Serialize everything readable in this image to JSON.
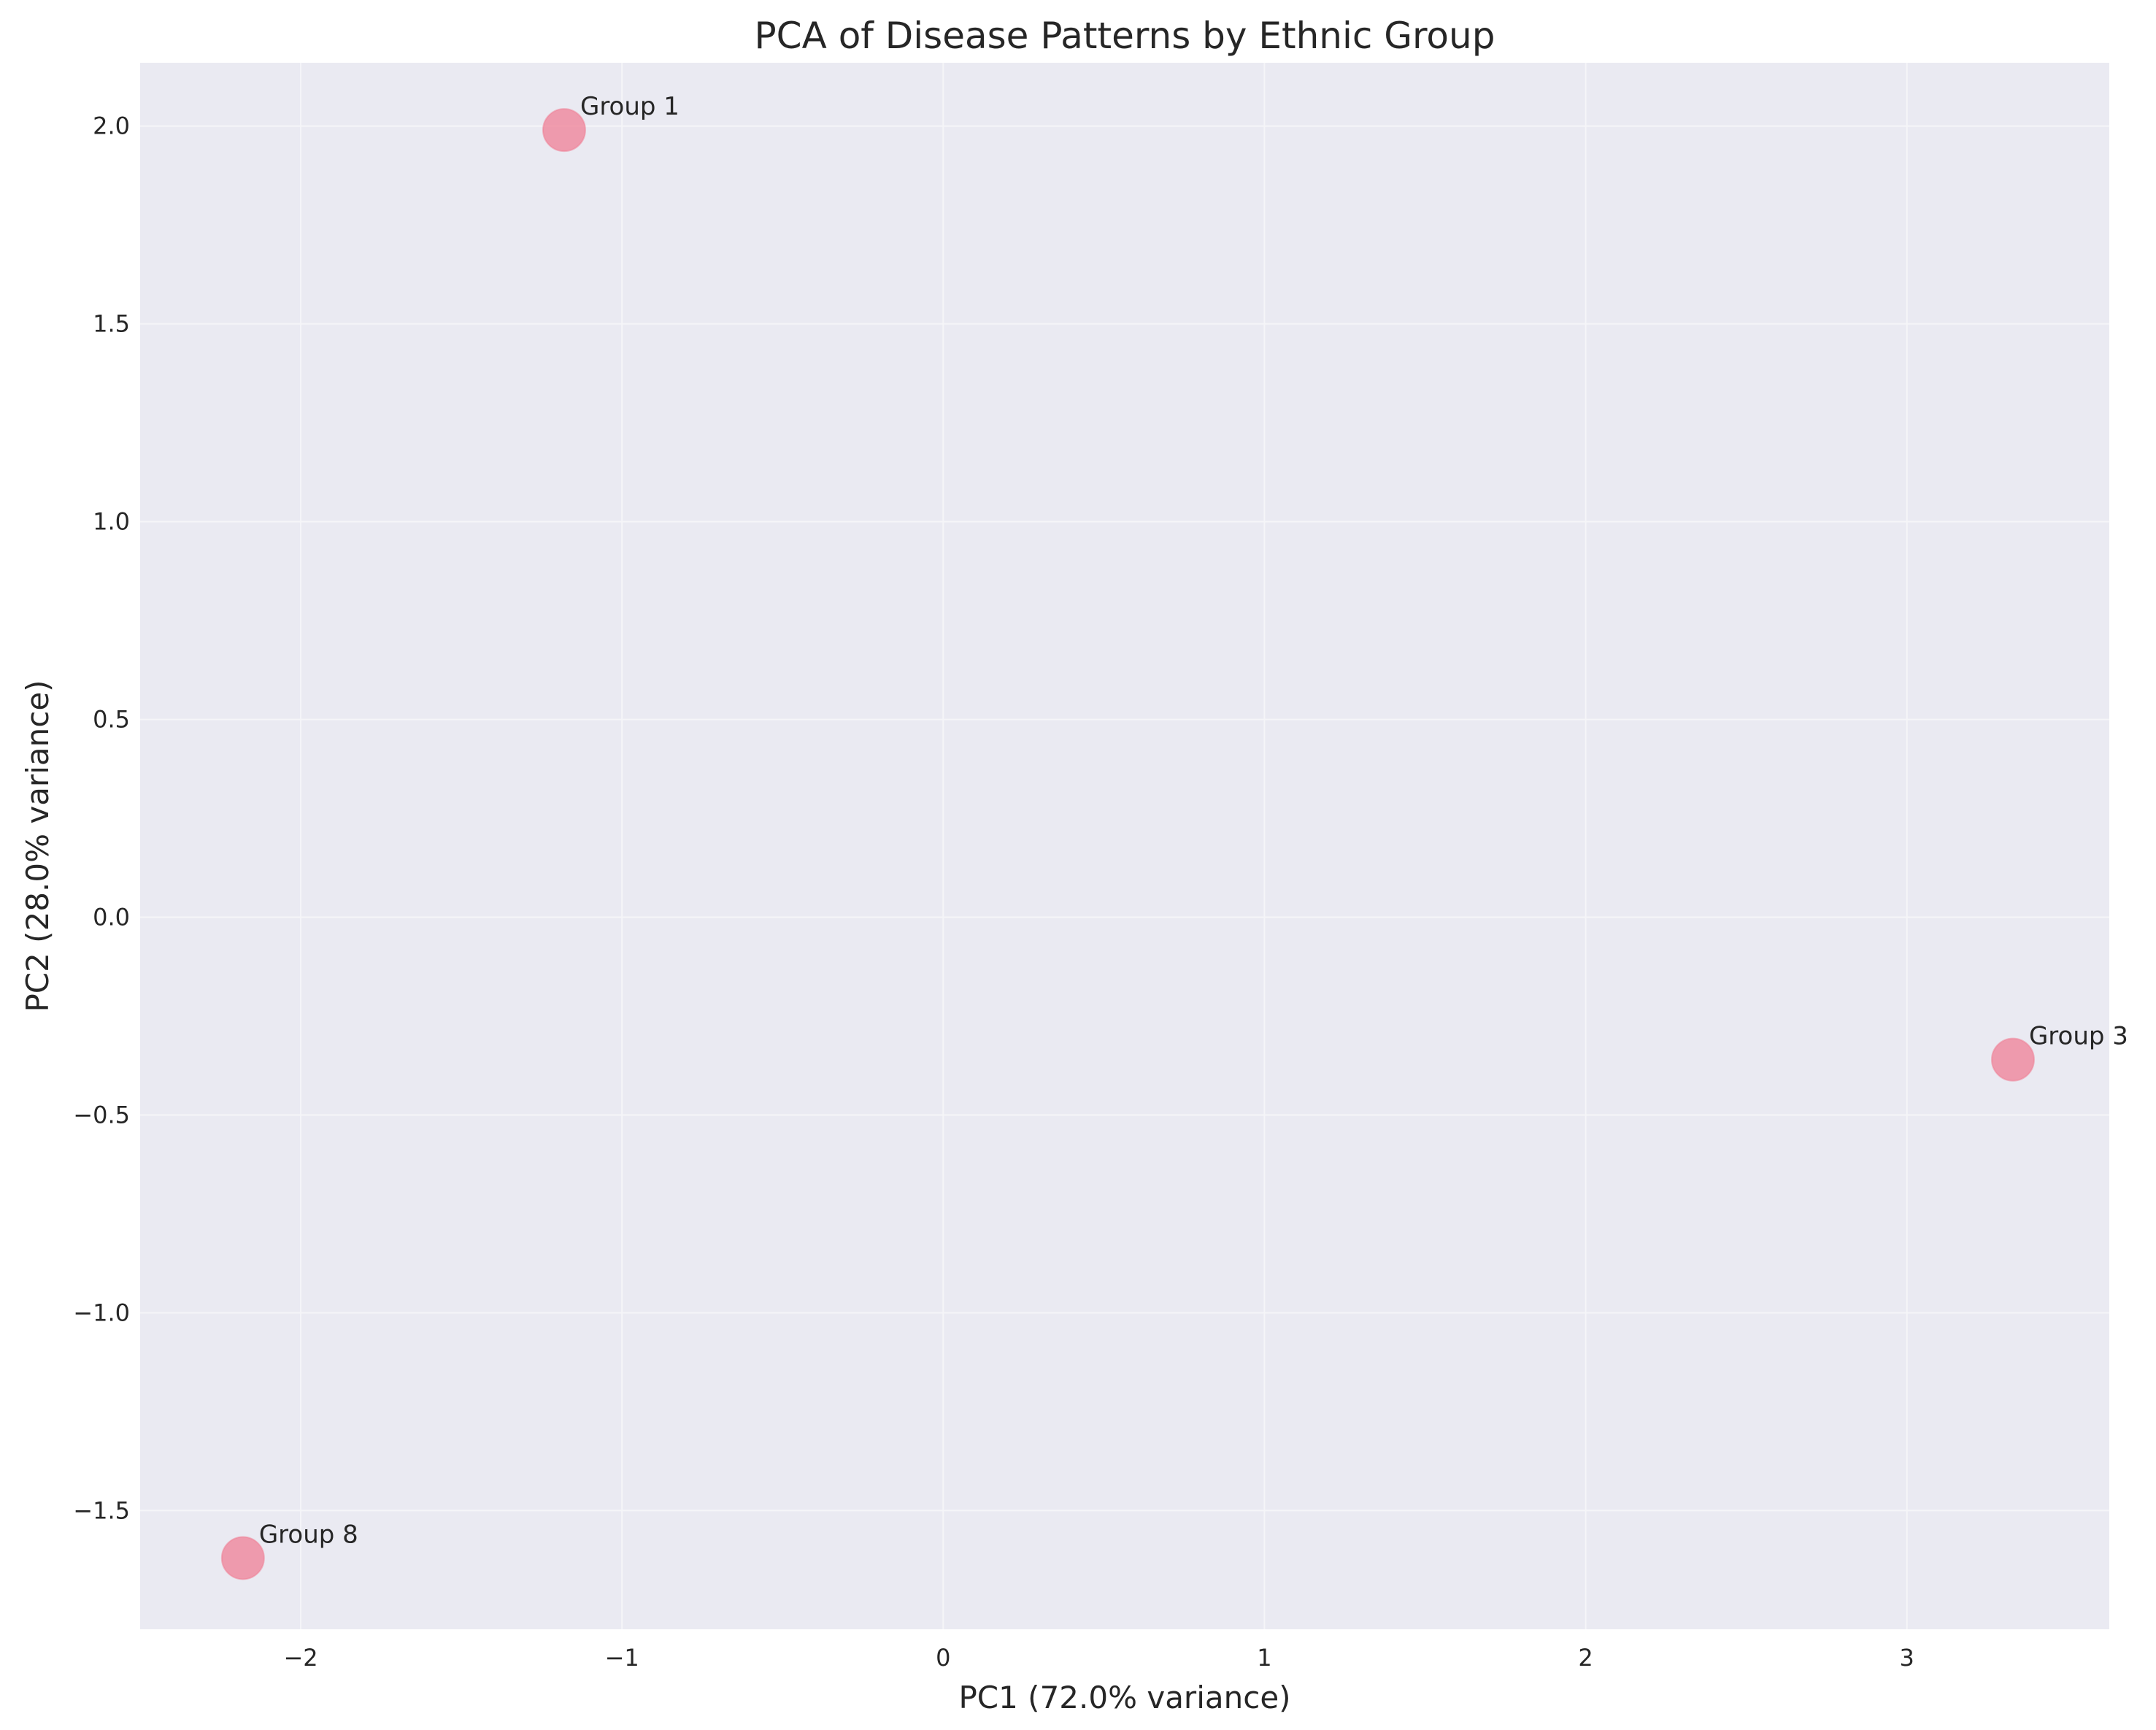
{
  "chart_data": {
    "type": "scatter",
    "title": "PCA of Disease Patterns by Ethnic Group",
    "xlabel": "PC1 (72.0% variance)",
    "ylabel": "PC2 (28.0% variance)",
    "xlim": [
      -2.5,
      3.63
    ],
    "ylim": [
      -1.8,
      2.16
    ],
    "xticks": [
      -2,
      -1,
      0,
      1,
      2,
      3
    ],
    "xtick_labels": [
      "−2",
      "−1",
      "0",
      "1",
      "2",
      "3"
    ],
    "yticks": [
      -1.5,
      -1.0,
      -0.5,
      0.0,
      0.5,
      1.0,
      1.5,
      2.0
    ],
    "ytick_labels": [
      "−1.5",
      "−1.0",
      "−0.5",
      "0.0",
      "0.5",
      "1.0",
      "1.5",
      "2.0"
    ],
    "grid": true,
    "points": [
      {
        "label": "Group 1",
        "x": -1.18,
        "y": 1.99
      },
      {
        "label": "Group 3",
        "x": 3.33,
        "y": -0.36
      },
      {
        "label": "Group 8",
        "x": -2.18,
        "y": -1.62
      }
    ],
    "colors": {
      "background": "#eaeaf2",
      "grid": "#f5f5f8",
      "marker": "#f07c92",
      "text": "#262626"
    }
  }
}
